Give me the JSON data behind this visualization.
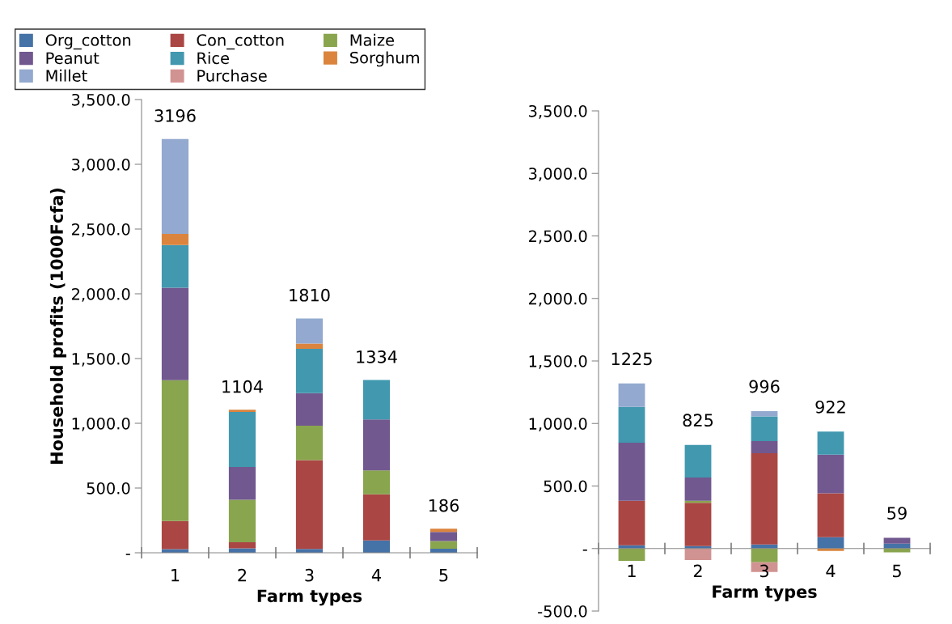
{
  "chart_data": [
    {
      "type": "bar",
      "stacked": true,
      "ylabel": "Household profits (1000Fcfa)",
      "xlabel": "Farm types",
      "categories": [
        "1",
        "2",
        "3",
        "4",
        "5"
      ],
      "series": [
        {
          "name": "Org_cotton",
          "color": "#4572a7",
          "values": [
            28,
            34,
            30,
            95,
            32
          ]
        },
        {
          "name": "Con_cotton",
          "color": "#aa4643",
          "values": [
            218,
            47,
            686,
            356,
            0
          ]
        },
        {
          "name": "Maize",
          "color": "#89a54e",
          "values": [
            1087,
            328,
            265,
            185,
            59
          ]
        },
        {
          "name": "Peanut",
          "color": "#71588f",
          "values": [
            714,
            254,
            252,
            394,
            70
          ]
        },
        {
          "name": "Rice",
          "color": "#4198af",
          "values": [
            329,
            424,
            342,
            304,
            0
          ]
        },
        {
          "name": "Sorghum",
          "color": "#db843d",
          "values": [
            86,
            17,
            40,
            0,
            25
          ]
        },
        {
          "name": "Millet",
          "color": "#93a9cf",
          "values": [
            734,
            0,
            195,
            0,
            0
          ]
        },
        {
          "name": "Purchase",
          "color": "#d19392",
          "values": [
            0,
            0,
            0,
            0,
            0
          ]
        }
      ],
      "annotations": [
        {
          "text": "3196",
          "x": "1",
          "y": 3196
        },
        {
          "text": "1104",
          "x": "2",
          "y": 1104
        },
        {
          "text": "1810",
          "x": "3",
          "y": 1810
        },
        {
          "text": "1334",
          "x": "4",
          "y": 1334
        },
        {
          "text": "186",
          "x": "5",
          "y": 186
        }
      ],
      "ylim": [
        0,
        3500
      ],
      "yticks": [
        {
          "value": 0,
          "label": "-"
        },
        {
          "value": 500,
          "label": "500.0"
        },
        {
          "value": 1000,
          "label": "1,000.0"
        },
        {
          "value": 1500,
          "label": "1,500.0"
        },
        {
          "value": 2000,
          "label": "2,000.0"
        },
        {
          "value": 2500,
          "label": "2,500.0"
        },
        {
          "value": 3000,
          "label": "3,000.0"
        },
        {
          "value": 3500,
          "label": "3,500.0"
        }
      ],
      "legend": "top left"
    },
    {
      "type": "bar",
      "stacked": true,
      "xlabel": "Farm types",
      "categories": [
        "1",
        "2",
        "3",
        "4",
        "5"
      ],
      "series": [
        {
          "color": "#4572a7",
          "values": [
            26,
            19,
            32,
            91,
            39
          ]
        },
        {
          "color": "#aa4643",
          "values": [
            356,
            346,
            730,
            350,
            0
          ]
        },
        {
          "color": "#89a54e",
          "values": [
            -99,
            17,
            -110,
            0,
            -30
          ]
        },
        {
          "color": "#71588f",
          "values": [
            465,
            186,
            98,
            309,
            47
          ]
        },
        {
          "color": "#4198af",
          "values": [
            285,
            261,
            196,
            185,
            0
          ]
        },
        {
          "color": "#db843d",
          "values": [
            0,
            0,
            0,
            -19,
            0
          ]
        },
        {
          "color": "#93a9cf",
          "values": [
            188,
            0,
            43,
            0,
            0
          ]
        },
        {
          "color": "#d19392",
          "values": [
            0,
            -93,
            -78,
            0,
            0
          ]
        }
      ],
      "annotations": [
        {
          "text": "1225",
          "x": "1",
          "y": 1320
        },
        {
          "text": "825",
          "x": "2",
          "y": 829
        },
        {
          "text": "996",
          "x": "3",
          "y": 1099
        },
        {
          "text": "922",
          "x": "4",
          "y": 935
        },
        {
          "text": "59",
          "x": "5",
          "y": 86
        }
      ],
      "ylim": [
        -500,
        3500
      ],
      "yticks": [
        {
          "value": -500,
          "label": "-500.0"
        },
        {
          "value": 0,
          "label": "-"
        },
        {
          "value": 500,
          "label": "500.0"
        },
        {
          "value": 1000,
          "label": "1,000.0"
        },
        {
          "value": 1500,
          "label": "1,500.0"
        },
        {
          "value": 2000,
          "label": "2,000.0"
        },
        {
          "value": 2500,
          "label": "2,500.0"
        },
        {
          "value": 3000,
          "label": "3,000.0"
        },
        {
          "value": 3500,
          "label": "3,500.0"
        }
      ]
    }
  ]
}
